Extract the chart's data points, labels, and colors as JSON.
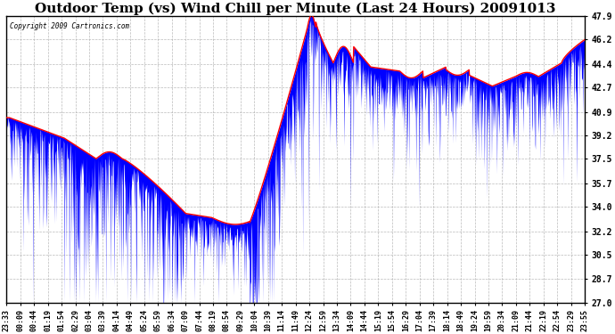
{
  "title": "Outdoor Temp (vs) Wind Chill per Minute (Last 24 Hours) 20091013",
  "copyright_text": "Copyright 2009 Cartronics.com",
  "ylim": [
    27.0,
    47.9
  ],
  "yticks": [
    27.0,
    28.7,
    30.5,
    32.2,
    34.0,
    35.7,
    37.5,
    39.2,
    40.9,
    42.7,
    44.4,
    46.2,
    47.9
  ],
  "xtick_labels": [
    "23:33",
    "00:09",
    "00:44",
    "01:19",
    "01:54",
    "02:29",
    "03:04",
    "03:39",
    "04:14",
    "04:49",
    "05:24",
    "05:59",
    "06:34",
    "07:09",
    "07:44",
    "08:19",
    "08:54",
    "09:29",
    "10:04",
    "10:39",
    "11:14",
    "11:49",
    "12:24",
    "12:59",
    "13:34",
    "14:09",
    "14:44",
    "15:19",
    "15:54",
    "16:29",
    "17:04",
    "17:39",
    "18:14",
    "18:49",
    "19:24",
    "19:59",
    "20:34",
    "21:09",
    "21:44",
    "22:19",
    "22:54",
    "23:29",
    "23:55"
  ],
  "background_color": "#ffffff",
  "plot_bg_color": "#ffffff",
  "grid_color": "#aaaaaa",
  "blue_color": "#0000ff",
  "red_color": "#ff0000",
  "title_fontsize": 11,
  "title_fontfamily": "serif"
}
